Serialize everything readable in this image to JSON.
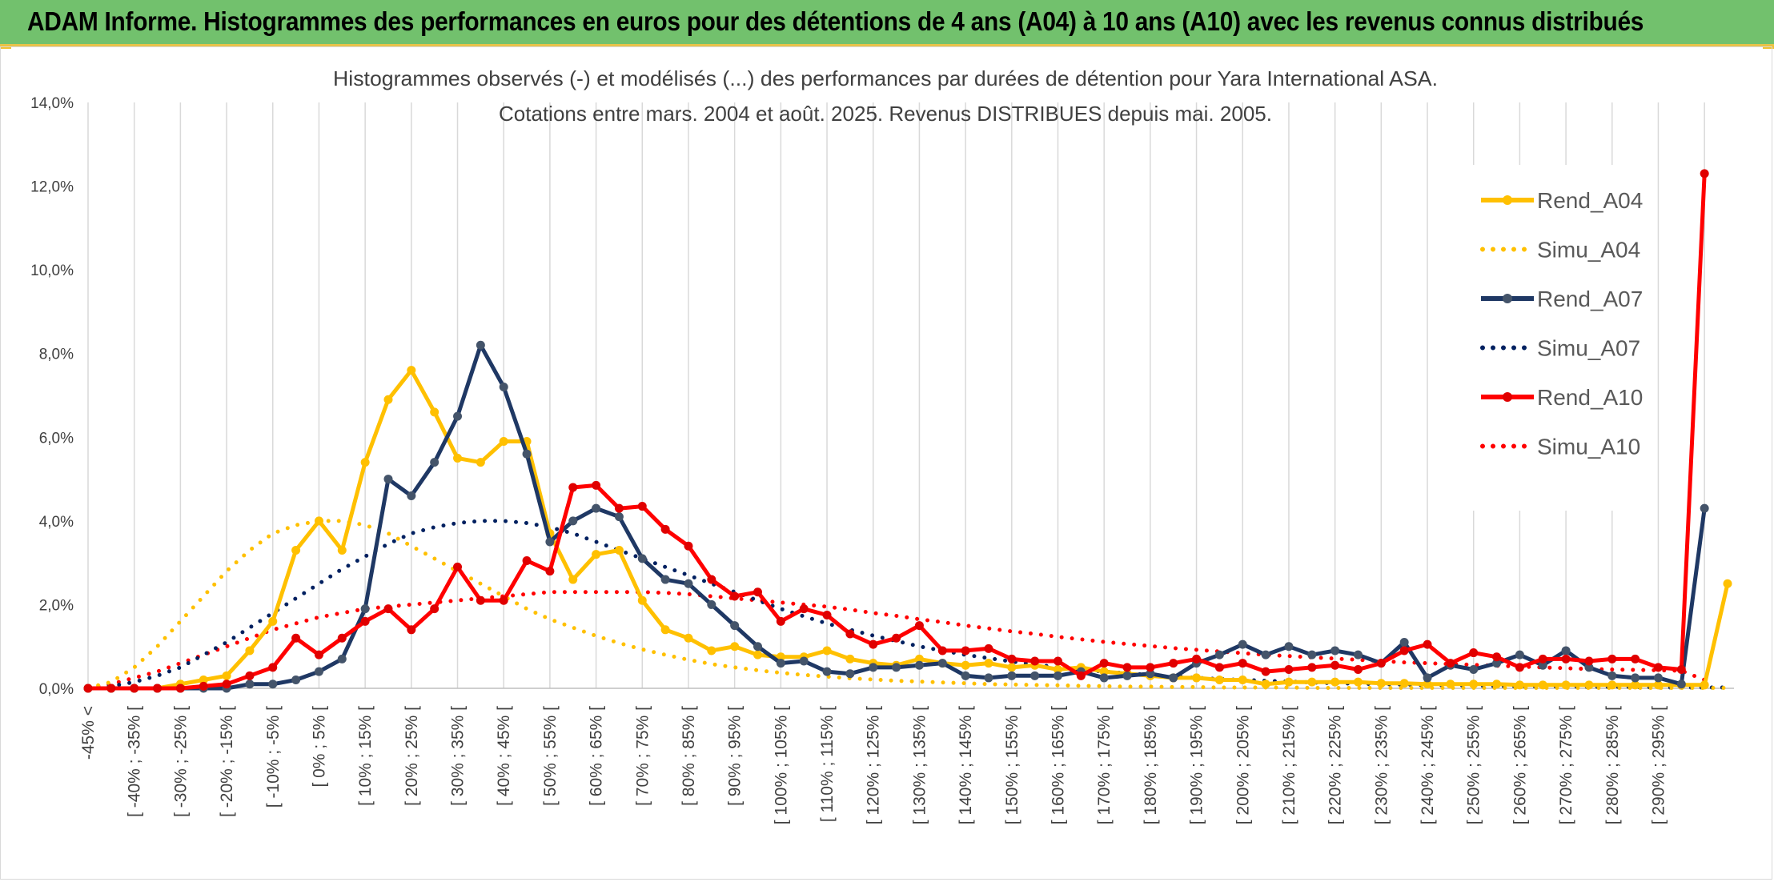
{
  "banner": {
    "title": "ADAM Informe. Histogrammes des performances en euros pour des détentions de 4 ans (A04) à 10 ans (A10) avec les revenus connus distribués"
  },
  "chart_data": {
    "type": "line",
    "subtitle_lines": [
      "Histogrammes observés (-) et modélisés (...) des performances par durées de détention pour Yara International ASA.",
      "Cotations entre mars. 2004 et août. 2025. Revenus DISTRIBUES depuis mai. 2005."
    ],
    "ylim": [
      0,
      14
    ],
    "yticks": [
      "0,0%",
      "2,0%",
      "4,0%",
      "6,0%",
      "8,0%",
      "10,0%",
      "12,0%",
      "14,0%"
    ],
    "grid": "vertical",
    "legend_position": "right",
    "x_labels": [
      "-45% <",
      "[ -40% ; -35% [",
      "[ -30% ; -25% [",
      "[ -20% ; -15% [",
      "[ -10% ; -5% [",
      "[ 0% ; 5% [",
      "[ 10% ; 15% [",
      "[ 20% ; 25% [",
      "[ 30% ; 35% [",
      "[ 40% ; 45% [",
      "[ 50% ; 55% [",
      "[ 60% ; 65% [",
      "[ 70% ; 75% [",
      "[ 80% ; 85% [",
      "[ 90% ; 95% [",
      "[ 100% ; 105% [",
      "[ 110% ; 115% [",
      "[ 120% ; 125% [",
      "[ 130% ; 135% [",
      "[ 140% ; 145% [",
      "[ 150% ; 155% [",
      "[ 160% ; 165% [",
      "[ 170% ; 175% [",
      "[ 180% ; 185% [",
      "[ 190% ; 195% [",
      "[ 200% ; 205% [",
      "[ 210% ; 215% [",
      "[ 220% ; 225% [",
      "[ 230% ; 235% [",
      "[ 240% ; 245% [",
      "[ 250% ; 255% [",
      "[ 260% ; 265% [",
      "[ 270% ; 275% [",
      "[ 280% ; 285% [",
      "[ 290% ; 295% ["
    ],
    "series": [
      {
        "name": "Rend_A04",
        "color": "#ffc000",
        "style": "solid",
        "markers": true,
        "values": [
          0,
          0,
          0,
          0,
          0.1,
          0.2,
          0.3,
          0.9,
          1.6,
          3.3,
          4.0,
          3.3,
          5.4,
          6.9,
          7.6,
          6.6,
          5.5,
          5.4,
          5.9,
          5.9,
          3.7,
          2.6,
          3.2,
          3.3,
          2.1,
          1.4,
          1.2,
          0.9,
          1.0,
          0.8,
          0.75,
          0.75,
          0.9,
          0.7,
          0.6,
          0.55,
          0.7,
          0.6,
          0.55,
          0.6,
          0.5,
          0.55,
          0.45,
          0.5,
          0.4,
          0.35,
          0.3,
          0.25,
          0.25,
          0.2,
          0.2,
          0.1,
          0.15,
          0.15,
          0.15,
          0.15,
          0.12,
          0.12,
          0.1,
          0.1,
          0.1,
          0.1,
          0.08,
          0.08,
          0.08,
          0.08,
          0.08,
          0.08,
          0.08,
          0.08,
          0.08,
          2.5
        ]
      },
      {
        "name": "Simu_A04",
        "color": "#ffc000",
        "style": "dotted",
        "markers": false,
        "values": [
          0.01,
          0.15,
          0.5,
          1.0,
          1.6,
          2.2,
          2.8,
          3.3,
          3.7,
          3.9,
          4.0,
          4.0,
          3.9,
          3.7,
          3.4,
          3.1,
          2.8,
          2.5,
          2.2,
          1.9,
          1.65,
          1.45,
          1.25,
          1.08,
          0.93,
          0.8,
          0.68,
          0.58,
          0.5,
          0.43,
          0.37,
          0.32,
          0.28,
          0.24,
          0.21,
          0.18,
          0.16,
          0.14,
          0.12,
          0.1,
          0.09,
          0.08,
          0.07,
          0.06,
          0.05,
          0.04,
          0.04,
          0.03,
          0.03,
          0.02,
          0.02,
          0.02,
          0.02,
          0.01,
          0.01,
          0.01,
          0.01,
          0.01,
          0.01,
          0.01,
          0.01,
          0.01,
          0.01,
          0.01,
          0.01,
          0.01,
          0.01,
          0.01,
          0.01,
          0.01,
          0.01,
          0.01
        ]
      },
      {
        "name": "Rend_A07",
        "color": "#1f3864",
        "marker_color": "#44546a",
        "style": "solid",
        "markers": true,
        "values": [
          0,
          0,
          0,
          0,
          0,
          0,
          0,
          0.1,
          0.1,
          0.2,
          0.4,
          0.7,
          1.9,
          5.0,
          4.6,
          5.4,
          6.5,
          8.2,
          7.2,
          5.6,
          3.5,
          4.0,
          4.3,
          4.1,
          3.1,
          2.6,
          2.5,
          2.0,
          1.5,
          1.0,
          0.6,
          0.65,
          0.4,
          0.35,
          0.5,
          0.5,
          0.55,
          0.6,
          0.3,
          0.25,
          0.3,
          0.3,
          0.3,
          0.4,
          0.25,
          0.3,
          0.35,
          0.25,
          0.6,
          0.8,
          1.05,
          0.8,
          1.0,
          0.8,
          0.9,
          0.8,
          0.6,
          1.1,
          0.25,
          0.55,
          0.45,
          0.6,
          0.8,
          0.55,
          0.9,
          0.5,
          0.3,
          0.25,
          0.25,
          0.1,
          4.3
        ]
      },
      {
        "name": "Simu_A07",
        "color": "#002060",
        "style": "dotted",
        "markers": false,
        "values": [
          0.01,
          0.05,
          0.15,
          0.3,
          0.5,
          0.8,
          1.1,
          1.45,
          1.8,
          2.15,
          2.5,
          2.85,
          3.15,
          3.45,
          3.7,
          3.85,
          3.95,
          4.0,
          4.0,
          3.95,
          3.85,
          3.7,
          3.5,
          3.3,
          3.1,
          2.9,
          2.7,
          2.5,
          2.3,
          2.1,
          1.9,
          1.72,
          1.55,
          1.4,
          1.26,
          1.13,
          1.0,
          0.9,
          0.8,
          0.72,
          0.64,
          0.57,
          0.5,
          0.45,
          0.4,
          0.36,
          0.32,
          0.28,
          0.25,
          0.22,
          0.2,
          0.18,
          0.16,
          0.14,
          0.12,
          0.11,
          0.1,
          0.09,
          0.08,
          0.07,
          0.06,
          0.05,
          0.05,
          0.04,
          0.04,
          0.03,
          0.03,
          0.03,
          0.02,
          0.02,
          0.02,
          0.02
        ]
      },
      {
        "name": "Rend_A10",
        "color": "#ff0000",
        "marker_color": "#e00000",
        "style": "solid",
        "markers": true,
        "values": [
          0,
          0,
          0,
          0,
          0,
          0.05,
          0.1,
          0.3,
          0.5,
          1.2,
          0.8,
          1.2,
          1.6,
          1.9,
          1.4,
          1.9,
          2.9,
          2.1,
          2.1,
          3.05,
          2.8,
          4.8,
          4.85,
          4.3,
          4.35,
          3.8,
          3.4,
          2.6,
          2.2,
          2.3,
          1.6,
          1.9,
          1.75,
          1.3,
          1.05,
          1.2,
          1.5,
          0.9,
          0.9,
          0.95,
          0.7,
          0.65,
          0.65,
          0.3,
          0.6,
          0.5,
          0.5,
          0.6,
          0.7,
          0.5,
          0.6,
          0.4,
          0.45,
          0.5,
          0.55,
          0.45,
          0.6,
          0.9,
          1.05,
          0.6,
          0.85,
          0.75,
          0.5,
          0.7,
          0.7,
          0.65,
          0.7,
          0.7,
          0.5,
          0.45,
          12.3
        ]
      },
      {
        "name": "Simu_A10",
        "color": "#ff0000",
        "style": "dotted",
        "markers": false,
        "values": [
          0.02,
          0.1,
          0.25,
          0.4,
          0.6,
          0.8,
          1.0,
          1.2,
          1.4,
          1.55,
          1.7,
          1.8,
          1.9,
          1.95,
          2.0,
          2.05,
          2.1,
          2.15,
          2.2,
          2.25,
          2.3,
          2.3,
          2.3,
          2.3,
          2.3,
          2.28,
          2.25,
          2.2,
          2.15,
          2.1,
          2.05,
          2.0,
          1.95,
          1.88,
          1.8,
          1.73,
          1.65,
          1.58,
          1.5,
          1.43,
          1.36,
          1.3,
          1.23,
          1.17,
          1.11,
          1.06,
          1.01,
          0.96,
          0.92,
          0.88,
          0.84,
          0.8,
          0.77,
          0.74,
          0.71,
          0.68,
          0.65,
          0.62,
          0.6,
          0.58,
          0.56,
          0.54,
          0.52,
          0.5,
          0.48,
          0.46,
          0.45,
          0.44,
          0.43,
          0.42,
          0.2
        ]
      }
    ]
  }
}
